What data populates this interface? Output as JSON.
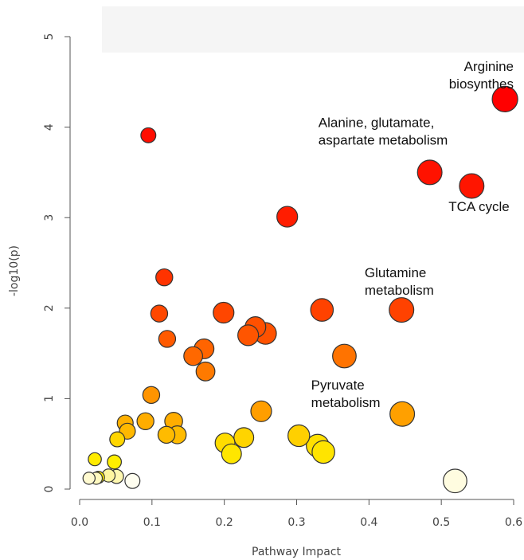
{
  "chart_data": {
    "type": "scatter",
    "xlabel": "Pathway Impact",
    "ylabel": "-log10(p)",
    "xlim": [
      0,
      0.6
    ],
    "ylim": [
      0,
      5
    ],
    "x_ticks": [
      "0.0",
      "0.1",
      "0.2",
      "0.3",
      "0.4",
      "0.5",
      "0.6"
    ],
    "y_ticks": [
      "0",
      "1",
      "2",
      "3",
      "4",
      "5"
    ],
    "grid": false,
    "points": [
      {
        "x": 0.588,
        "y": 4.31,
        "size": 1.0,
        "color": "#ff0000"
      },
      {
        "x": 0.095,
        "y": 3.91,
        "size": 0.45,
        "color": "#ff0d00"
      },
      {
        "x": 0.484,
        "y": 3.5,
        "size": 0.95,
        "color": "#ff1200"
      },
      {
        "x": 0.542,
        "y": 3.35,
        "size": 0.95,
        "color": "#ff1500"
      },
      {
        "x": 0.287,
        "y": 3.01,
        "size": 0.75,
        "color": "#ff1d00"
      },
      {
        "x": 0.117,
        "y": 2.34,
        "size": 0.55,
        "color": "#ff3300"
      },
      {
        "x": 0.335,
        "y": 1.98,
        "size": 0.85,
        "color": "#ff4200"
      },
      {
        "x": 0.445,
        "y": 1.98,
        "size": 0.95,
        "color": "#ff4200"
      },
      {
        "x": 0.199,
        "y": 1.95,
        "size": 0.75,
        "color": "#ff4600"
      },
      {
        "x": 0.11,
        "y": 1.94,
        "size": 0.55,
        "color": "#ff4800"
      },
      {
        "x": 0.243,
        "y": 1.79,
        "size": 0.75,
        "color": "#ff5000"
      },
      {
        "x": 0.257,
        "y": 1.72,
        "size": 0.8,
        "color": "#ff5200"
      },
      {
        "x": 0.233,
        "y": 1.7,
        "size": 0.75,
        "color": "#ff5500"
      },
      {
        "x": 0.121,
        "y": 1.66,
        "size": 0.55,
        "color": "#ff5a00"
      },
      {
        "x": 0.172,
        "y": 1.55,
        "size": 0.7,
        "color": "#ff6400"
      },
      {
        "x": 0.157,
        "y": 1.47,
        "size": 0.65,
        "color": "#ff6800"
      },
      {
        "x": 0.366,
        "y": 1.47,
        "size": 0.9,
        "color": "#ff7300"
      },
      {
        "x": 0.174,
        "y": 1.3,
        "size": 0.65,
        "color": "#ff7a00"
      },
      {
        "x": 0.099,
        "y": 1.04,
        "size": 0.55,
        "color": "#ff9400"
      },
      {
        "x": 0.446,
        "y": 0.83,
        "size": 0.95,
        "color": "#ffa000"
      },
      {
        "x": 0.251,
        "y": 0.86,
        "size": 0.75,
        "color": "#ff9e00"
      },
      {
        "x": 0.091,
        "y": 0.75,
        "size": 0.55,
        "color": "#ffad00"
      },
      {
        "x": 0.13,
        "y": 0.75,
        "size": 0.6,
        "color": "#ffad00"
      },
      {
        "x": 0.063,
        "y": 0.73,
        "size": 0.5,
        "color": "#ffb000"
      },
      {
        "x": 0.066,
        "y": 0.64,
        "size": 0.5,
        "color": "#ffb800"
      },
      {
        "x": 0.12,
        "y": 0.6,
        "size": 0.55,
        "color": "#ffbb00"
      },
      {
        "x": 0.135,
        "y": 0.6,
        "size": 0.6,
        "color": "#ffbb00"
      },
      {
        "x": 0.303,
        "y": 0.59,
        "size": 0.8,
        "color": "#ffd000"
      },
      {
        "x": 0.227,
        "y": 0.57,
        "size": 0.7,
        "color": "#ffd400"
      },
      {
        "x": 0.052,
        "y": 0.55,
        "size": 0.45,
        "color": "#ffd600"
      },
      {
        "x": 0.201,
        "y": 0.51,
        "size": 0.7,
        "color": "#ffdc00"
      },
      {
        "x": 0.329,
        "y": 0.48,
        "size": 0.85,
        "color": "#ffe000"
      },
      {
        "x": 0.337,
        "y": 0.41,
        "size": 0.85,
        "color": "#ffe400"
      },
      {
        "x": 0.21,
        "y": 0.39,
        "size": 0.7,
        "color": "#ffe600"
      },
      {
        "x": 0.021,
        "y": 0.33,
        "size": 0.35,
        "color": "#ffeb00"
      },
      {
        "x": 0.048,
        "y": 0.3,
        "size": 0.4,
        "color": "#ffef00"
      },
      {
        "x": 0.04,
        "y": 0.15,
        "size": 0.35,
        "color": "#fff6a0"
      },
      {
        "x": 0.051,
        "y": 0.14,
        "size": 0.4,
        "color": "#fff8b0"
      },
      {
        "x": 0.026,
        "y": 0.13,
        "size": 0.3,
        "color": "#ffee00"
      },
      {
        "x": 0.023,
        "y": 0.12,
        "size": 0.3,
        "color": "#fff9c0"
      },
      {
        "x": 0.013,
        "y": 0.12,
        "size": 0.3,
        "color": "#fffad0"
      },
      {
        "x": 0.073,
        "y": 0.09,
        "size": 0.45,
        "color": "#fffef0"
      },
      {
        "x": 0.519,
        "y": 0.09,
        "size": 0.9,
        "color": "#fffce0"
      }
    ],
    "annotations": [
      {
        "lines": [
          "Arginine",
          "biosynthes"
        ],
        "anchor": "end",
        "x": 0.6,
        "y": 4.62
      },
      {
        "lines": [
          "Alanine, glutamate,",
          "aspartate metabolism"
        ],
        "anchor": "start",
        "x": 0.33,
        "y": 4.0
      },
      {
        "lines": [
          "TCA cycle"
        ],
        "anchor": "start",
        "x": 0.51,
        "y": 3.07
      },
      {
        "lines": [
          "Glutamine",
          "metabolism"
        ],
        "anchor": "start",
        "x": 0.394,
        "y": 2.34
      },
      {
        "lines": [
          "Pyruvate",
          "metabolism"
        ],
        "anchor": "start",
        "x": 0.32,
        "y": 1.1
      }
    ]
  }
}
